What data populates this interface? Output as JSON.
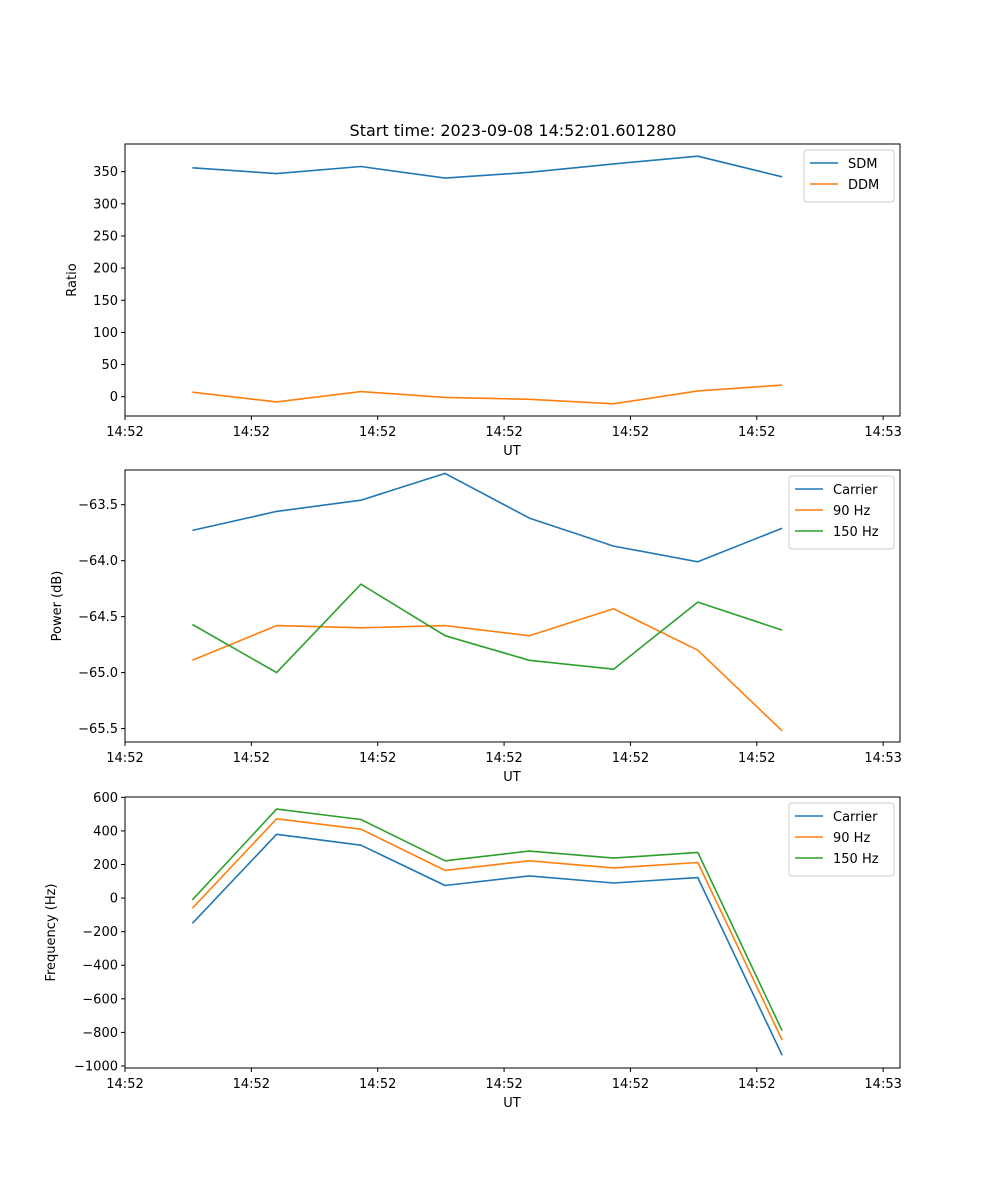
{
  "figure": {
    "title": "Start time: 2023-09-08 14:52:01.601280"
  },
  "chart_data": [
    {
      "type": "line",
      "name": "ratio",
      "xlabel": "UT",
      "ylabel": "Ratio",
      "x": [
        1,
        2,
        3,
        4,
        5,
        6,
        7,
        8
      ],
      "xlim": [
        0.2,
        9.4
      ],
      "xticks": [
        {
          "pos": 0.2,
          "label": "14:52"
        },
        {
          "pos": 1.7,
          "label": "14:52"
        },
        {
          "pos": 3.2,
          "label": "14:52"
        },
        {
          "pos": 4.7,
          "label": "14:52"
        },
        {
          "pos": 6.2,
          "label": "14:52"
        },
        {
          "pos": 7.7,
          "label": "14:52"
        },
        {
          "pos": 9.2,
          "label": "14:53"
        }
      ],
      "ylim": [
        -30,
        393
      ],
      "yticks": [
        {
          "pos": 0,
          "label": "0"
        },
        {
          "pos": 50,
          "label": "50"
        },
        {
          "pos": 100,
          "label": "100"
        },
        {
          "pos": 150,
          "label": "150"
        },
        {
          "pos": 200,
          "label": "200"
        },
        {
          "pos": 250,
          "label": "250"
        },
        {
          "pos": 300,
          "label": "300"
        },
        {
          "pos": 350,
          "label": "350"
        }
      ],
      "series": [
        {
          "name": "SDM",
          "color": "#1f77b4",
          "values": [
            356,
            347,
            358,
            340,
            349,
            362,
            374,
            342
          ]
        },
        {
          "name": "DDM",
          "color": "#ff7f0e",
          "values": [
            7,
            -8,
            8,
            -1,
            -4,
            -11,
            9,
            18
          ]
        }
      ],
      "legend": "top-right"
    },
    {
      "type": "line",
      "name": "power",
      "xlabel": "UT",
      "ylabel": "Power (dB)",
      "x": [
        1,
        2,
        3,
        4,
        5,
        6,
        7,
        8
      ],
      "xlim": [
        0.2,
        9.4
      ],
      "xticks": [
        {
          "pos": 0.2,
          "label": "14:52"
        },
        {
          "pos": 1.7,
          "label": "14:52"
        },
        {
          "pos": 3.2,
          "label": "14:52"
        },
        {
          "pos": 4.7,
          "label": "14:52"
        },
        {
          "pos": 6.2,
          "label": "14:52"
        },
        {
          "pos": 7.7,
          "label": "14:52"
        },
        {
          "pos": 9.2,
          "label": "14:53"
        }
      ],
      "ylim": [
        -65.62,
        -63.19
      ],
      "yticks": [
        {
          "pos": -63.5,
          "label": "−63.5"
        },
        {
          "pos": -64.0,
          "label": "−64.0"
        },
        {
          "pos": -64.5,
          "label": "−64.5"
        },
        {
          "pos": -65.0,
          "label": "−65.0"
        },
        {
          "pos": -65.5,
          "label": "−65.5"
        }
      ],
      "series": [
        {
          "name": "Carrier",
          "color": "#1f77b4",
          "values": [
            -63.73,
            -63.56,
            -63.46,
            -63.22,
            -63.62,
            -63.87,
            -64.01,
            -63.71
          ]
        },
        {
          "name": "90 Hz",
          "color": "#ff7f0e",
          "values": [
            -64.89,
            -64.58,
            -64.6,
            -64.58,
            -64.67,
            -64.43,
            -64.8,
            -65.52
          ]
        },
        {
          "name": "150 Hz",
          "color": "#2ca02c",
          "values": [
            -64.57,
            -65.0,
            -64.21,
            -64.67,
            -64.89,
            -64.97,
            -64.37,
            -64.62
          ]
        }
      ],
      "legend": "top-right"
    },
    {
      "type": "line",
      "name": "frequency",
      "xlabel": "UT",
      "ylabel": "Frequency (Hz)",
      "x": [
        1,
        2,
        3,
        4,
        5,
        6,
        7,
        8
      ],
      "xlim": [
        0.2,
        9.4
      ],
      "xticks": [
        {
          "pos": 0.2,
          "label": "14:52"
        },
        {
          "pos": 1.7,
          "label": "14:52"
        },
        {
          "pos": 3.2,
          "label": "14:52"
        },
        {
          "pos": 4.7,
          "label": "14:52"
        },
        {
          "pos": 6.2,
          "label": "14:52"
        },
        {
          "pos": 7.7,
          "label": "14:52"
        },
        {
          "pos": 9.2,
          "label": "14:53"
        }
      ],
      "ylim": [
        -1012,
        602
      ],
      "yticks": [
        {
          "pos": 600,
          "label": "600"
        },
        {
          "pos": 400,
          "label": "400"
        },
        {
          "pos": 200,
          "label": "200"
        },
        {
          "pos": 0,
          "label": "0"
        },
        {
          "pos": -200,
          "label": "−200"
        },
        {
          "pos": -400,
          "label": "−400"
        },
        {
          "pos": -600,
          "label": "−600"
        },
        {
          "pos": -800,
          "label": "−800"
        },
        {
          "pos": -1000,
          "label": "−1000"
        }
      ],
      "series": [
        {
          "name": "Carrier",
          "color": "#1f77b4",
          "values": [
            -150,
            380,
            315,
            75,
            132,
            90,
            122,
            -935
          ]
        },
        {
          "name": "90 Hz",
          "color": "#ff7f0e",
          "values": [
            -60,
            472,
            410,
            165,
            222,
            180,
            212,
            -845
          ]
        },
        {
          "name": "150 Hz",
          "color": "#2ca02c",
          "values": [
            -10,
            530,
            468,
            222,
            280,
            238,
            272,
            -790
          ]
        }
      ],
      "legend": "top-right"
    }
  ]
}
